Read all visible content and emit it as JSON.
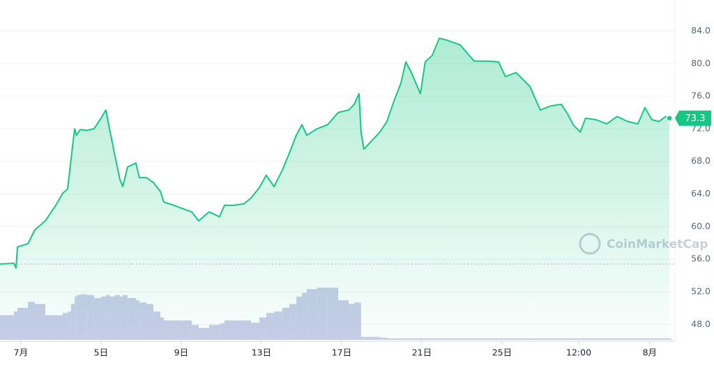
{
  "chart_data": {
    "type": "area",
    "watermark": "CoinMarketCap",
    "color": "#16c784",
    "volume_color": "#c8cce8",
    "x": [
      -1.04,
      -0.35,
      -0.24,
      -0.17,
      0.35,
      0.7,
      1.22,
      1.74,
      2.09,
      2.33,
      2.5,
      2.68,
      2.78,
      2.96,
      3.3,
      3.65,
      4.0,
      4.24,
      4.42,
      4.7,
      4.94,
      5.08,
      5.32,
      5.74,
      5.91,
      6.26,
      6.61,
      6.96,
      7.13,
      7.65,
      8.07,
      8.52,
      8.87,
      9.39,
      9.91,
      10.16,
      10.61,
      11.13,
      11.48,
      11.9,
      12.24,
      12.63,
      13.04,
      13.39,
      13.74,
      14.02,
      14.26,
      14.78,
      15.3,
      15.83,
      16.35,
      16.63,
      16.87,
      16.97,
      17.11,
      17.57,
      17.91,
      18.26,
      18.61,
      18.96,
      19.2,
      19.48,
      19.93,
      20.17,
      20.52,
      20.87,
      21.22,
      21.91,
      22.61,
      23.3,
      23.83,
      24.17,
      24.7,
      25.39,
      25.91,
      26.43,
      26.96,
      27.3,
      27.55,
      27.9,
      28.17,
      28.7,
      29.22,
      29.74,
      30.26,
      30.78,
      31.13,
      31.48,
      31.83,
      32.17,
      32.35
    ],
    "values": [
      55.4,
      55.5,
      54.9,
      57.5,
      57.9,
      59.6,
      60.7,
      62.6,
      64.1,
      64.6,
      68.2,
      72.0,
      71.2,
      71.9,
      71.8,
      72.0,
      73.3,
      74.3,
      72.0,
      68.6,
      65.8,
      64.9,
      67.3,
      67.8,
      66.0,
      66.0,
      65.4,
      64.3,
      63.0,
      62.6,
      62.2,
      61.8,
      60.7,
      61.8,
      61.2,
      62.6,
      62.6,
      62.8,
      63.5,
      64.8,
      66.3,
      64.9,
      66.9,
      69.0,
      71.2,
      72.5,
      71.2,
      72.0,
      72.5,
      74.0,
      74.3,
      75.0,
      76.3,
      71.6,
      69.5,
      70.7,
      71.6,
      72.9,
      75.4,
      77.6,
      80.2,
      78.9,
      76.3,
      80.2,
      81.0,
      83.1,
      82.9,
      82.3,
      80.3,
      80.3,
      80.2,
      78.4,
      78.9,
      77.2,
      74.3,
      74.8,
      75.0,
      73.7,
      72.5,
      71.6,
      73.3,
      73.1,
      72.6,
      73.5,
      72.9,
      72.6,
      74.6,
      73.1,
      72.9,
      73.5,
      73.3
    ],
    "volume": [
      33,
      38,
      38,
      43,
      51,
      48,
      33,
      33,
      36,
      38,
      48,
      58,
      60,
      61,
      60,
      56,
      58,
      60,
      58,
      60,
      58,
      60,
      56,
      53,
      50,
      48,
      38,
      30,
      26,
      26,
      26,
      20,
      16,
      20,
      22,
      26,
      26,
      26,
      23,
      30,
      36,
      38,
      43,
      48,
      58,
      63,
      68,
      70,
      70,
      53,
      48,
      50,
      50,
      4,
      4,
      4,
      3,
      2,
      2,
      2,
      2,
      2,
      2,
      2,
      2,
      2,
      2,
      2,
      2,
      2,
      2,
      2,
      2,
      2,
      2,
      2,
      2,
      2,
      2,
      2,
      2,
      2,
      2,
      2,
      2,
      2,
      2,
      2,
      2,
      2,
      2
    ],
    "xlim": [
      -1.04,
      32.35
    ],
    "xticks": [
      {
        "value": 0,
        "label": "7月"
      },
      {
        "value": 4,
        "label": "5日"
      },
      {
        "value": 8,
        "label": "9日"
      },
      {
        "value": 12,
        "label": "13日"
      },
      {
        "value": 16,
        "label": "17日"
      },
      {
        "value": 20,
        "label": "21日"
      },
      {
        "value": 24,
        "label": "25日"
      },
      {
        "value": 27.83,
        "label": "12:00"
      },
      {
        "value": 31.37,
        "label": "8月"
      }
    ],
    "ylim": [
      46.1,
      87.8
    ],
    "yticks": [
      {
        "value": 48,
        "label": "48.0"
      },
      {
        "value": 52,
        "label": "52.0"
      },
      {
        "value": 56,
        "label": "56.0"
      },
      {
        "value": 60,
        "label": "60.0"
      },
      {
        "value": 64,
        "label": "64.0"
      },
      {
        "value": 68,
        "label": "68.0"
      },
      {
        "value": 72,
        "label": "72.0"
      },
      {
        "value": 76,
        "label": "76.0"
      },
      {
        "value": 80,
        "label": "80.0"
      },
      {
        "value": 84,
        "label": "84.0"
      }
    ],
    "grid": true
  }
}
